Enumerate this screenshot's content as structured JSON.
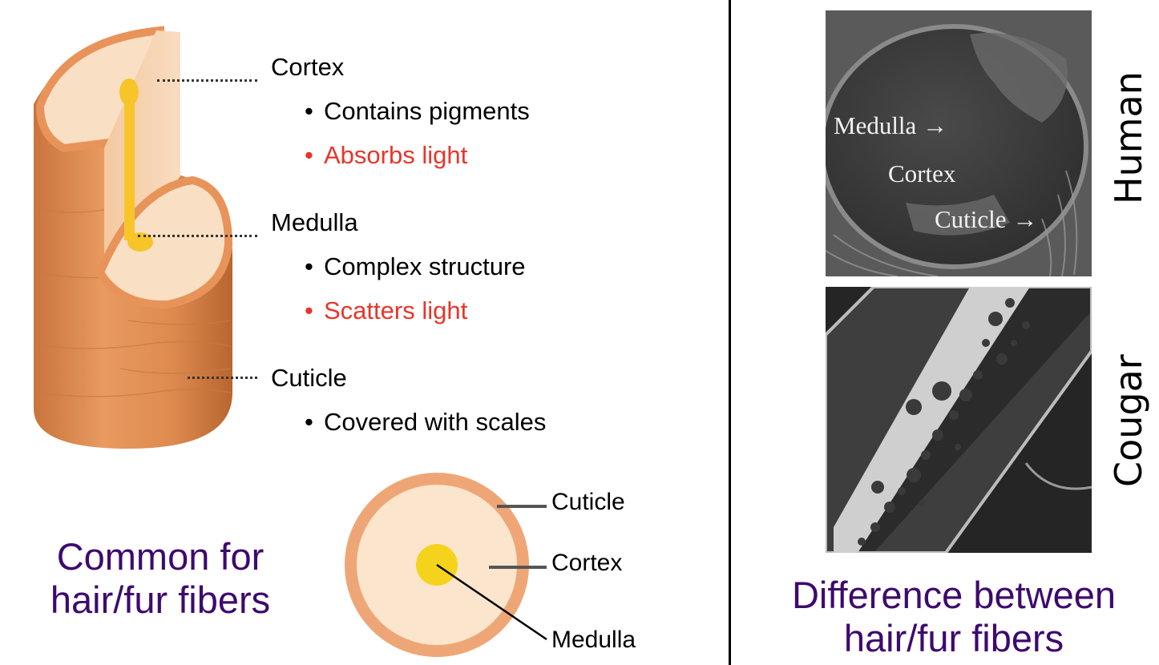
{
  "left": {
    "structure_labels": [
      {
        "name": "Cortex",
        "bullets": [
          {
            "text": "Contains pigments",
            "color": "#000000"
          },
          {
            "text": "Absorbs light",
            "color": "#e8352a"
          }
        ]
      },
      {
        "name": "Medulla",
        "bullets": [
          {
            "text": "Complex structure",
            "color": "#000000"
          },
          {
            "text": "Scatters light",
            "color": "#e8352a"
          }
        ]
      },
      {
        "name": "Cuticle",
        "bullets": [
          {
            "text": "Covered with scales",
            "color": "#000000"
          }
        ]
      }
    ],
    "cross_section_labels": {
      "cuticle": "Cuticle",
      "cortex": "Cortex",
      "medulla": "Medulla"
    },
    "caption_line1": "Common for",
    "caption_line2": "hair/fur fibers",
    "bullet_symbol": "•"
  },
  "right": {
    "human_image_labels": {
      "medulla": "Medulla →",
      "cortex": "Cortex",
      "cuticle": "Cuticle →"
    },
    "side_label_top": "Human",
    "side_label_bottom": "Cougar",
    "caption_line1": "Difference between",
    "caption_line2": "hair/fur fibers"
  },
  "colors": {
    "caption": "#3d0a6e",
    "highlight": "#e8352a",
    "hair_outer": "#e8935a",
    "hair_inner": "#f9e0c4",
    "medulla": "#f7c52a"
  }
}
